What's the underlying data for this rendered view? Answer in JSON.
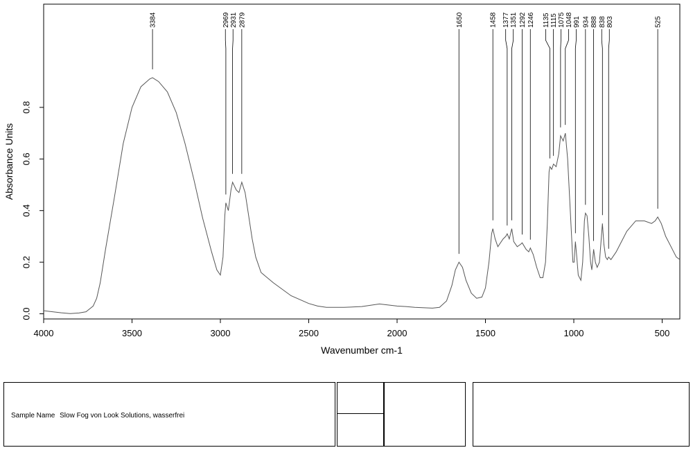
{
  "chart_data": {
    "type": "line",
    "title": "",
    "xlabel": "Wavenumber cm-1",
    "ylabel": "Absorbance Units",
    "xlim": [
      4000,
      400
    ],
    "ylim": [
      -0.02,
      1.2
    ],
    "x_ticks": [
      4000,
      3500,
      3000,
      2500,
      2000,
      1500,
      1000,
      500
    ],
    "y_ticks": [
      0.0,
      0.2,
      0.4,
      0.6,
      0.8
    ],
    "grid": false,
    "series": [
      {
        "name": "",
        "color": "#555555",
        "points": [
          [
            4000,
            0.012
          ],
          [
            3900,
            0.004
          ],
          [
            3850,
            0.001
          ],
          [
            3800,
            0.003
          ],
          [
            3760,
            0.008
          ],
          [
            3720,
            0.03
          ],
          [
            3700,
            0.06
          ],
          [
            3680,
            0.12
          ],
          [
            3650,
            0.25
          ],
          [
            3600,
            0.45
          ],
          [
            3550,
            0.66
          ],
          [
            3500,
            0.8
          ],
          [
            3450,
            0.88
          ],
          [
            3400,
            0.91
          ],
          [
            3384,
            0.915
          ],
          [
            3350,
            0.9
          ],
          [
            3300,
            0.86
          ],
          [
            3250,
            0.78
          ],
          [
            3200,
            0.66
          ],
          [
            3150,
            0.52
          ],
          [
            3100,
            0.37
          ],
          [
            3050,
            0.24
          ],
          [
            3020,
            0.17
          ],
          [
            3000,
            0.15
          ],
          [
            2985,
            0.22
          ],
          [
            2975,
            0.38
          ],
          [
            2969,
            0.43
          ],
          [
            2955,
            0.4
          ],
          [
            2940,
            0.48
          ],
          [
            2931,
            0.51
          ],
          [
            2910,
            0.48
          ],
          [
            2895,
            0.47
          ],
          [
            2879,
            0.51
          ],
          [
            2860,
            0.47
          ],
          [
            2840,
            0.38
          ],
          [
            2820,
            0.29
          ],
          [
            2800,
            0.22
          ],
          [
            2770,
            0.16
          ],
          [
            2700,
            0.12
          ],
          [
            2600,
            0.07
          ],
          [
            2500,
            0.04
          ],
          [
            2450,
            0.03
          ],
          [
            2400,
            0.025
          ],
          [
            2300,
            0.025
          ],
          [
            2200,
            0.028
          ],
          [
            2100,
            0.038
          ],
          [
            2000,
            0.03
          ],
          [
            1950,
            0.028
          ],
          [
            1900,
            0.025
          ],
          [
            1800,
            0.022
          ],
          [
            1760,
            0.025
          ],
          [
            1720,
            0.05
          ],
          [
            1690,
            0.11
          ],
          [
            1670,
            0.17
          ],
          [
            1650,
            0.2
          ],
          [
            1630,
            0.18
          ],
          [
            1610,
            0.13
          ],
          [
            1580,
            0.08
          ],
          [
            1550,
            0.06
          ],
          [
            1520,
            0.065
          ],
          [
            1500,
            0.1
          ],
          [
            1480,
            0.2
          ],
          [
            1465,
            0.31
          ],
          [
            1458,
            0.33
          ],
          [
            1445,
            0.29
          ],
          [
            1430,
            0.26
          ],
          [
            1400,
            0.29
          ],
          [
            1385,
            0.3
          ],
          [
            1377,
            0.31
          ],
          [
            1365,
            0.29
          ],
          [
            1351,
            0.33
          ],
          [
            1340,
            0.28
          ],
          [
            1320,
            0.26
          ],
          [
            1300,
            0.27
          ],
          [
            1292,
            0.275
          ],
          [
            1270,
            0.25
          ],
          [
            1255,
            0.24
          ],
          [
            1246,
            0.255
          ],
          [
            1230,
            0.23
          ],
          [
            1210,
            0.18
          ],
          [
            1190,
            0.14
          ],
          [
            1175,
            0.14
          ],
          [
            1160,
            0.2
          ],
          [
            1150,
            0.35
          ],
          [
            1140,
            0.55
          ],
          [
            1135,
            0.57
          ],
          [
            1125,
            0.56
          ],
          [
            1115,
            0.58
          ],
          [
            1100,
            0.57
          ],
          [
            1085,
            0.62
          ],
          [
            1075,
            0.69
          ],
          [
            1060,
            0.67
          ],
          [
            1048,
            0.7
          ],
          [
            1035,
            0.6
          ],
          [
            1020,
            0.4
          ],
          [
            1005,
            0.2
          ],
          [
            998,
            0.2
          ],
          [
            991,
            0.28
          ],
          [
            983,
            0.22
          ],
          [
            975,
            0.15
          ],
          [
            960,
            0.13
          ],
          [
            950,
            0.2
          ],
          [
            940,
            0.36
          ],
          [
            934,
            0.39
          ],
          [
            925,
            0.38
          ],
          [
            915,
            0.3
          ],
          [
            905,
            0.2
          ],
          [
            898,
            0.17
          ],
          [
            888,
            0.25
          ],
          [
            878,
            0.2
          ],
          [
            868,
            0.18
          ],
          [
            855,
            0.2
          ],
          [
            838,
            0.35
          ],
          [
            830,
            0.27
          ],
          [
            820,
            0.22
          ],
          [
            810,
            0.21
          ],
          [
            803,
            0.22
          ],
          [
            790,
            0.21
          ],
          [
            760,
            0.24
          ],
          [
            700,
            0.32
          ],
          [
            650,
            0.36
          ],
          [
            600,
            0.36
          ],
          [
            560,
            0.35
          ],
          [
            540,
            0.36
          ],
          [
            525,
            0.375
          ],
          [
            505,
            0.35
          ],
          [
            480,
            0.3
          ],
          [
            450,
            0.26
          ],
          [
            420,
            0.22
          ],
          [
            400,
            0.21
          ]
        ]
      }
    ],
    "peaks": [
      3384,
      2969,
      2931,
      2879,
      1650,
      1458,
      1377,
      1351,
      1292,
      1246,
      1135,
      1115,
      1075,
      1048,
      991,
      934,
      888,
      838,
      803,
      525
    ],
    "peak_labels": [
      "3384",
      "2969",
      "2931",
      "2879",
      "1650",
      "1458",
      "1377",
      "1351",
      "1292",
      "1246",
      "1135",
      "1115",
      "1075",
      "1048",
      "991",
      "934",
      "888",
      "838",
      "803",
      "525"
    ]
  },
  "info_panel": {
    "sample_name_label": "Sample Name",
    "sample_name_value": "Slow Fog von Look Solutions, wasserfrei"
  }
}
